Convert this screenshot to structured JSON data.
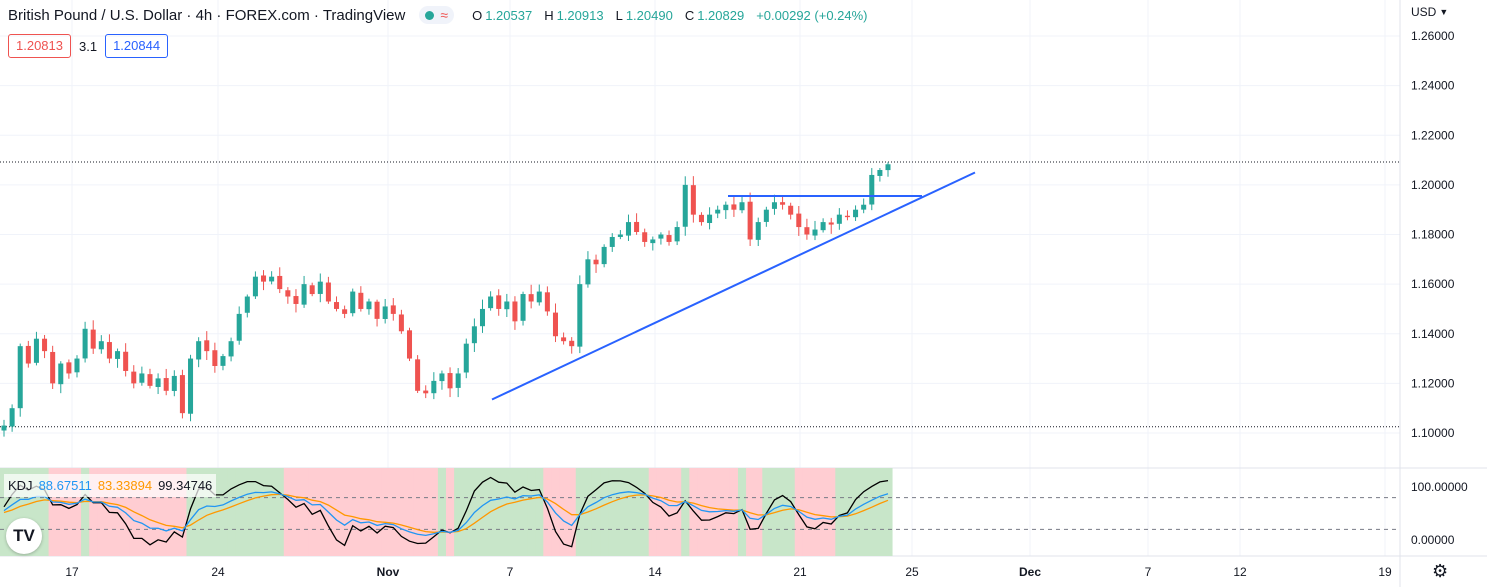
{
  "header": {
    "title": "British Pound / U.S. Dollar · 4h · FOREX.com · TradingView",
    "open_label": "O",
    "open": "1.20537",
    "high_label": "H",
    "high": "1.20913",
    "low_label": "L",
    "low": "1.20490",
    "close_label": "C",
    "close": "1.20829",
    "change": "+0.00292 (+0.24%)",
    "currency": "USD"
  },
  "trade": {
    "sell_price": "1.20813",
    "spread": "3.1",
    "buy_price": "1.20844"
  },
  "kdj": {
    "label": "KDJ",
    "k": "88.67511",
    "d": "83.33894",
    "j": "99.34746"
  },
  "colors": {
    "up": "#26a69a",
    "down": "#ef5350",
    "trendline": "#2962ff",
    "k_line": "#2196f3",
    "d_line": "#ff9800",
    "j_line": "#000000",
    "bg_up": "#c8e6c9",
    "bg_down": "#ffcdd2"
  },
  "icons": {
    "logo": "tradingview-logo-icon",
    "settings": "gear-icon"
  },
  "chart_data": {
    "type": "candlestick",
    "symbol": "GBPUSD",
    "interval": "4h",
    "ylim": [
      1.1,
      1.26
    ],
    "y_ticks": [
      "1.26000",
      "1.24000",
      "1.22000",
      "1.20000",
      "1.18000",
      "1.16000",
      "1.14000",
      "1.12000",
      "1.10000"
    ],
    "x_ticks": [
      "17",
      "24",
      "Nov",
      "7",
      "14",
      "21",
      "25",
      "Dec",
      "7",
      "12",
      "19"
    ],
    "series_path": [
      [
        1.103,
        1.11,
        1.135,
        1.128,
        1.138,
        1.133,
        1.12,
        1.128,
        1.124,
        1.13,
        1.142,
        1.134,
        1.137,
        1.13,
        1.133,
        1.125,
        1.12,
        1.124,
        1.119,
        1.122,
        1.117,
        1.123,
        1.108,
        1.13,
        1.137,
        1.133,
        1.127,
        1.131,
        1.137,
        1.148
      ],
      [
        1.155,
        1.163,
        1.161,
        1.163,
        1.158,
        1.155,
        1.152,
        1.16,
        1.156,
        1.161,
        1.153,
        1.15,
        1.148,
        1.157,
        1.15,
        1.153,
        1.146,
        1.151,
        1.148,
        1.141,
        1.13,
        1.117,
        1.116,
        1.121,
        1.124,
        1.118
      ],
      [
        1.124,
        1.136,
        1.143,
        1.15,
        1.155,
        1.15,
        1.153,
        1.145,
        1.156,
        1.153,
        1.157,
        1.149,
        1.139,
        1.137,
        1.135,
        1.16,
        1.17,
        1.168,
        1.175,
        1.179,
        1.18,
        1.185,
        1.181,
        1.177,
        1.178,
        1.18,
        1.177,
        1.183
      ],
      [
        1.2,
        1.188,
        1.185,
        1.188,
        1.19,
        1.192,
        1.19,
        1.193,
        1.178,
        1.185,
        1.19,
        1.193,
        1.192,
        1.188,
        1.183,
        1.18,
        1.182,
        1.185,
        1.184,
        1.188,
        1.187,
        1.19,
        1.192,
        1.204,
        1.206,
        1.2083
      ]
    ],
    "trendlines": [
      {
        "kind": "ascending",
        "from": [
          1.1135
        ],
        "to": [
          1.205
        ]
      },
      {
        "kind": "horizontal",
        "level": 1.1955
      }
    ],
    "reference_levels": [
      1.2092,
      1.1025
    ],
    "kdj_ylim": [
      -20,
      120
    ],
    "kdj_levels": [
      80,
      20
    ],
    "kdj_ticks": [
      "100.00000",
      "0.00000"
    ]
  }
}
